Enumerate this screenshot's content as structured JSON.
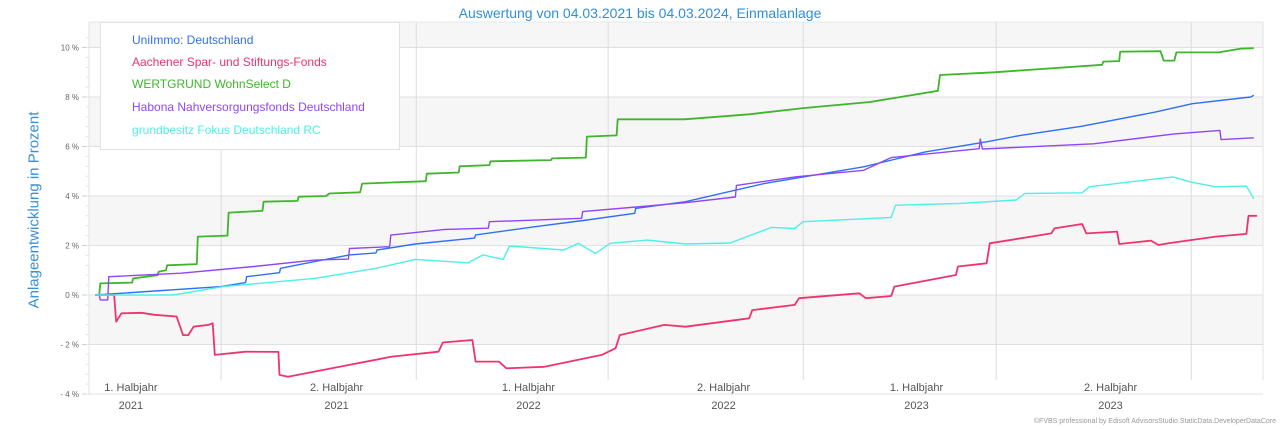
{
  "chart_data": {
    "type": "line",
    "title": "Auswertung von 04.03.2021 bis 04.03.2024, Einmalanlage",
    "ylabel": "Anlageentwicklung  in Prozent",
    "xlabel": "",
    "x_start": "04.03.2021",
    "x_days_total": 1096,
    "ylim": [
      -4,
      10.5
    ],
    "yticks": [
      {
        "value": 10,
        "label": "10 %"
      },
      {
        "value": 8,
        "label": "8 %"
      },
      {
        "value": 6,
        "label": "6 %"
      },
      {
        "value": 4,
        "label": "4 %"
      },
      {
        "value": 2,
        "label": "2 %"
      },
      {
        "value": 0,
        "label": "0 %"
      },
      {
        "value": -2,
        "label": "- 2 %"
      },
      {
        "value": -4,
        "label": "- 4 %"
      }
    ],
    "xticks": [
      {
        "day": 15,
        "line1": "1. Halbjahr",
        "line2": "2021"
      },
      {
        "day": 209,
        "line1": "2. Halbjahr",
        "line2": "2021"
      },
      {
        "day": 390,
        "line1": "1. Halbjahr",
        "line2": "2022"
      },
      {
        "day": 574,
        "line1": "2. Halbjahr",
        "line2": "2022"
      },
      {
        "day": 756,
        "line1": "1. Halbjahr",
        "line2": "2023"
      },
      {
        "day": 939,
        "line1": "2. Halbjahr",
        "line2": "2023"
      }
    ],
    "x_gridlines_days": [
      119,
      303,
      484,
      668,
      850,
      1034
    ],
    "grid": true,
    "legend_position": "top-left",
    "series": [
      {
        "name": "UniImmo: Deutschland",
        "color": "#2f6ff5",
        "points": [
          [
            0,
            0
          ],
          [
            119,
            0.34
          ],
          [
            142,
            0.5
          ],
          [
            143,
            0.74
          ],
          [
            174,
            0.9
          ],
          [
            175,
            1.08
          ],
          [
            207,
            1.35
          ],
          [
            240,
            1.62
          ],
          [
            265,
            1.7
          ],
          [
            266,
            1.82
          ],
          [
            302,
            2.06
          ],
          [
            358,
            2.3
          ],
          [
            359,
            2.43
          ],
          [
            417,
            2.77
          ],
          [
            464,
            3.03
          ],
          [
            509,
            3.3
          ],
          [
            510,
            3.5
          ],
          [
            557,
            3.77
          ],
          [
            631,
            4.5
          ],
          [
            725,
            5.18
          ],
          [
            783,
            5.78
          ],
          [
            841,
            6.19
          ],
          [
            873,
            6.45
          ],
          [
            931,
            6.82
          ],
          [
            1000,
            7.39
          ],
          [
            1035,
            7.73
          ],
          [
            1090,
            8.0
          ],
          [
            1093,
            8.07
          ]
        ]
      },
      {
        "name": "Aachener Spar- und Stiftungs-Fonds",
        "color": "#f0336e",
        "points": [
          [
            0,
            0
          ],
          [
            18,
            0
          ],
          [
            20,
            -1.08
          ],
          [
            25,
            -0.74
          ],
          [
            44,
            -0.72
          ],
          [
            56,
            -0.8
          ],
          [
            77,
            -0.87
          ],
          [
            83,
            -1.62
          ],
          [
            88,
            -1.62
          ],
          [
            93,
            -1.28
          ],
          [
            107,
            -1.21
          ],
          [
            111,
            -1.14
          ],
          [
            113,
            -2.42
          ],
          [
            142,
            -2.29
          ],
          [
            173,
            -2.3
          ],
          [
            174,
            -3.23
          ],
          [
            182,
            -3.3
          ],
          [
            215,
            -3.03
          ],
          [
            280,
            -2.49
          ],
          [
            324,
            -2.29
          ],
          [
            328,
            -1.92
          ],
          [
            356,
            -1.82
          ],
          [
            359,
            -2.69
          ],
          [
            381,
            -2.69
          ],
          [
            388,
            -2.96
          ],
          [
            424,
            -2.9
          ],
          [
            478,
            -2.42
          ],
          [
            491,
            -2.15
          ],
          [
            495,
            -1.62
          ],
          [
            537,
            -1.21
          ],
          [
            557,
            -1.28
          ],
          [
            617,
            -0.94
          ],
          [
            620,
            -0.61
          ],
          [
            660,
            -0.4
          ],
          [
            664,
            -0.13
          ],
          [
            721,
            0.07
          ],
          [
            727,
            -0.13
          ],
          [
            751,
            -0.04
          ],
          [
            754,
            0.34
          ],
          [
            812,
            0.81
          ],
          [
            814,
            1.15
          ],
          [
            841,
            1.28
          ],
          [
            844,
            2.09
          ],
          [
            902,
            2.49
          ],
          [
            905,
            2.69
          ],
          [
            931,
            2.87
          ],
          [
            935,
            2.49
          ],
          [
            964,
            2.56
          ],
          [
            966,
            2.06
          ],
          [
            996,
            2.2
          ],
          [
            1003,
            2.02
          ],
          [
            1014,
            2.1
          ],
          [
            1057,
            2.36
          ],
          [
            1086,
            2.47
          ],
          [
            1088,
            3.2
          ],
          [
            1096,
            3.2
          ]
        ]
      },
      {
        "name": "WERTGRUND WohnSelect D",
        "color": "#3fb52c",
        "points": [
          [
            0,
            0
          ],
          [
            4,
            0
          ],
          [
            5,
            0.47
          ],
          [
            35,
            0.5
          ],
          [
            36,
            0.67
          ],
          [
            59,
            0.8
          ],
          [
            60,
            0.94
          ],
          [
            67,
            1.0
          ],
          [
            68,
            1.2
          ],
          [
            96,
            1.25
          ],
          [
            97,
            2.36
          ],
          [
            125,
            2.4
          ],
          [
            126,
            3.33
          ],
          [
            158,
            3.4
          ],
          [
            159,
            3.77
          ],
          [
            191,
            3.8
          ],
          [
            192,
            3.97
          ],
          [
            218,
            4.0
          ],
          [
            221,
            4.1
          ],
          [
            250,
            4.15
          ],
          [
            252,
            4.5
          ],
          [
            312,
            4.6
          ],
          [
            313,
            4.9
          ],
          [
            343,
            4.95
          ],
          [
            344,
            5.2
          ],
          [
            372,
            5.25
          ],
          [
            373,
            5.4
          ],
          [
            430,
            5.45
          ],
          [
            431,
            5.52
          ],
          [
            463,
            5.55
          ],
          [
            464,
            6.4
          ],
          [
            492,
            6.45
          ],
          [
            493,
            7.1
          ],
          [
            556,
            7.1
          ],
          [
            617,
            7.3
          ],
          [
            668,
            7.55
          ],
          [
            731,
            7.8
          ],
          [
            795,
            8.25
          ],
          [
            797,
            8.89
          ],
          [
            848,
            9.0
          ],
          [
            950,
            9.3
          ],
          [
            951,
            9.43
          ],
          [
            966,
            9.45
          ],
          [
            967,
            9.83
          ],
          [
            1005,
            9.85
          ],
          [
            1008,
            9.47
          ],
          [
            1018,
            9.47
          ],
          [
            1020,
            9.8
          ],
          [
            1060,
            9.8
          ],
          [
            1080,
            9.95
          ],
          [
            1093,
            9.97
          ]
        ]
      },
      {
        "name": "Habona Nahversorgungsfonds Deutschland",
        "color": "#9146f5",
        "points": [
          [
            0,
            0
          ],
          [
            4,
            0
          ],
          [
            5,
            -0.2
          ],
          [
            12,
            -0.2
          ],
          [
            13,
            0.74
          ],
          [
            81,
            0.88
          ],
          [
            150,
            1.15
          ],
          [
            207,
            1.41
          ],
          [
            239,
            1.45
          ],
          [
            240,
            1.88
          ],
          [
            278,
            1.95
          ],
          [
            279,
            2.42
          ],
          [
            330,
            2.65
          ],
          [
            371,
            2.7
          ],
          [
            372,
            2.96
          ],
          [
            459,
            3.1
          ],
          [
            460,
            3.37
          ],
          [
            557,
            3.73
          ],
          [
            604,
            3.96
          ],
          [
            605,
            4.43
          ],
          [
            660,
            4.77
          ],
          [
            725,
            5.04
          ],
          [
            751,
            5.55
          ],
          [
            834,
            5.91
          ],
          [
            835,
            6.3
          ],
          [
            837,
            5.9
          ],
          [
            942,
            6.11
          ],
          [
            1018,
            6.51
          ],
          [
            1061,
            6.65
          ],
          [
            1062,
            6.28
          ],
          [
            1093,
            6.35
          ]
        ]
      },
      {
        "name": "grundbesitz Fokus Deutschland RC",
        "color": "#4df0e6",
        "points": [
          [
            0,
            0
          ],
          [
            74,
            0
          ],
          [
            121,
            0.34
          ],
          [
            207,
            0.67
          ],
          [
            265,
            1.08
          ],
          [
            302,
            1.44
          ],
          [
            352,
            1.3
          ],
          [
            366,
            1.62
          ],
          [
            385,
            1.44
          ],
          [
            391,
            1.98
          ],
          [
            442,
            1.82
          ],
          [
            456,
            2.09
          ],
          [
            472,
            1.68
          ],
          [
            486,
            2.09
          ],
          [
            521,
            2.22
          ],
          [
            557,
            2.06
          ],
          [
            599,
            2.1
          ],
          [
            638,
            2.73
          ],
          [
            660,
            2.69
          ],
          [
            668,
            2.96
          ],
          [
            751,
            3.13
          ],
          [
            755,
            3.63
          ],
          [
            816,
            3.7
          ],
          [
            869,
            3.84
          ],
          [
            877,
            4.1
          ],
          [
            931,
            4.13
          ],
          [
            938,
            4.37
          ],
          [
            968,
            4.53
          ],
          [
            1017,
            4.77
          ],
          [
            1033,
            4.57
          ],
          [
            1057,
            4.37
          ],
          [
            1086,
            4.4
          ],
          [
            1093,
            3.89
          ]
        ]
      }
    ]
  },
  "copyright": "©FVBS professional by Edisoft AdvisorsStudio.StaticData.DeveloperDataCore"
}
